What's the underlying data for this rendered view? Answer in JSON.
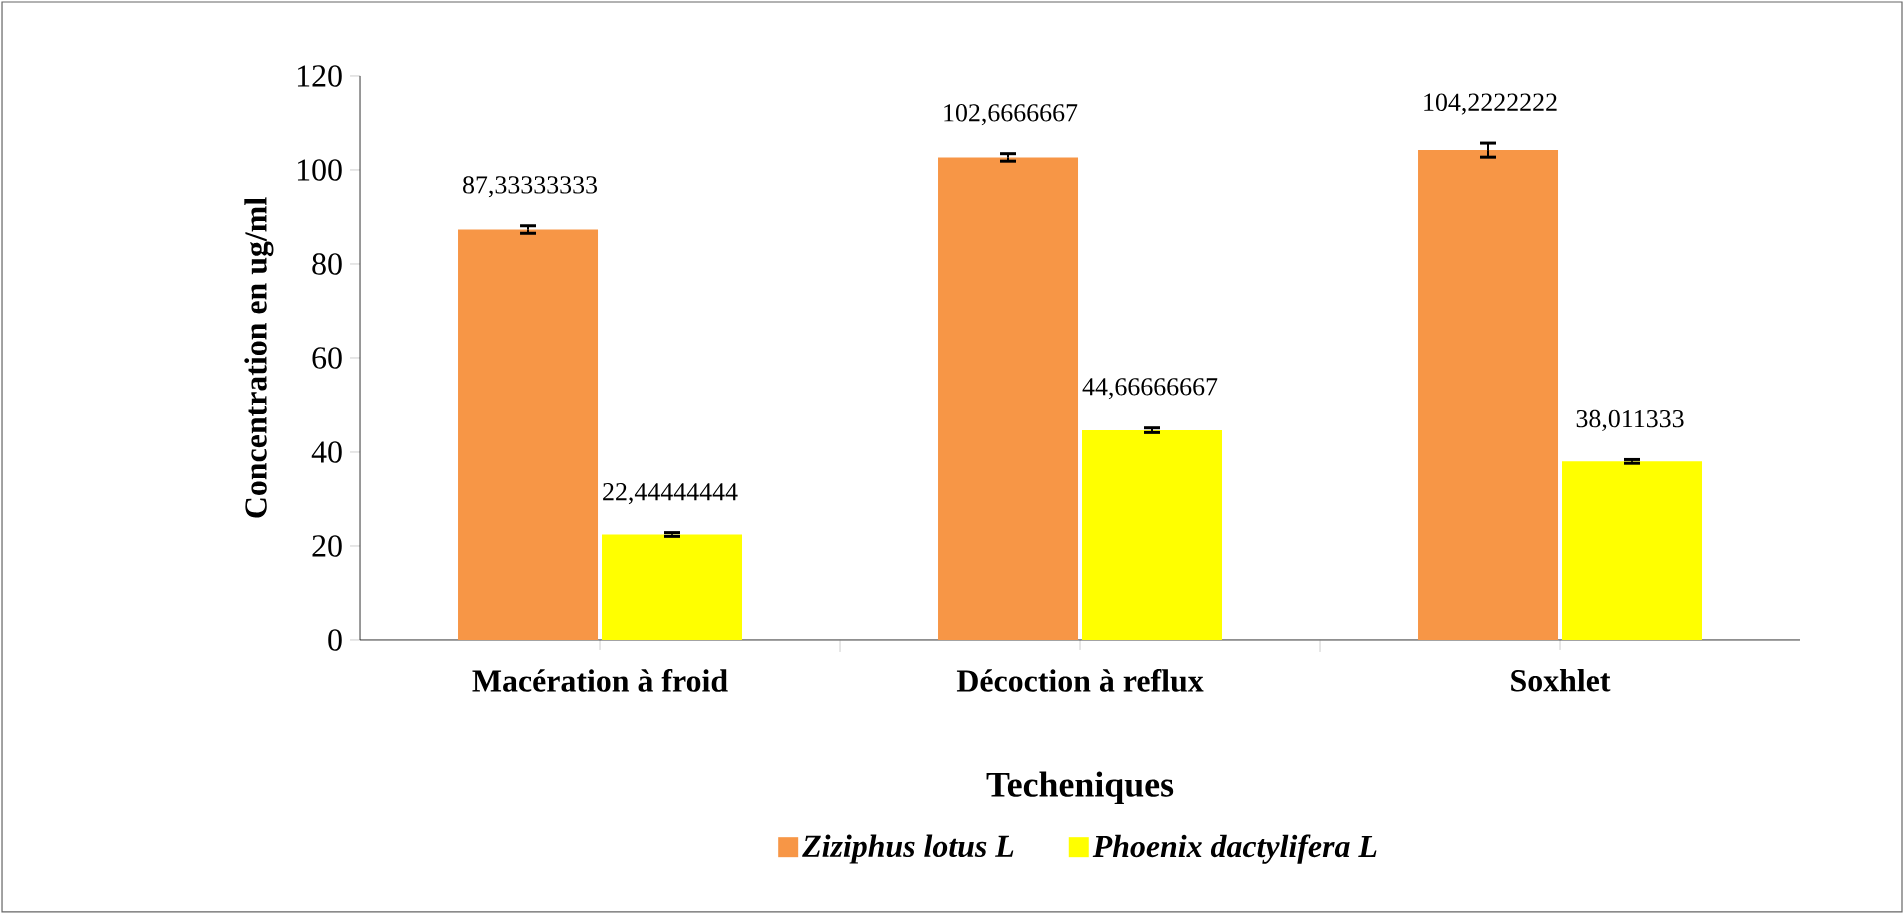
{
  "chart_data": {
    "type": "bar",
    "xlabel": "Techeniques",
    "ylabel": "Concentration en ug/ml",
    "categories": [
      "Macération à froid",
      "Décoction à reflux",
      "Soxhlet"
    ],
    "series": [
      {
        "name": "Ziziphus lotus L",
        "color": "#f79646",
        "values": [
          87.33333333,
          102.6666667,
          104.2222222
        ],
        "errors": [
          0.8,
          0.8,
          1.5
        ],
        "value_labels": [
          "87,33333333",
          "102,6666667",
          "104,2222222"
        ]
      },
      {
        "name": "Phoenix dactylifera L",
        "color": "#ffff00",
        "values": [
          22.44444444,
          44.66666667,
          38.011333
        ],
        "errors": [
          0.4,
          0.5,
          0.4
        ],
        "value_labels": [
          "22,44444444",
          "44,66666667",
          "38,011333"
        ]
      }
    ],
    "ylim": [
      0,
      120
    ],
    "yticks": [
      0,
      20,
      40,
      60,
      80,
      100,
      120
    ],
    "grid": false,
    "legend": "bottom"
  }
}
